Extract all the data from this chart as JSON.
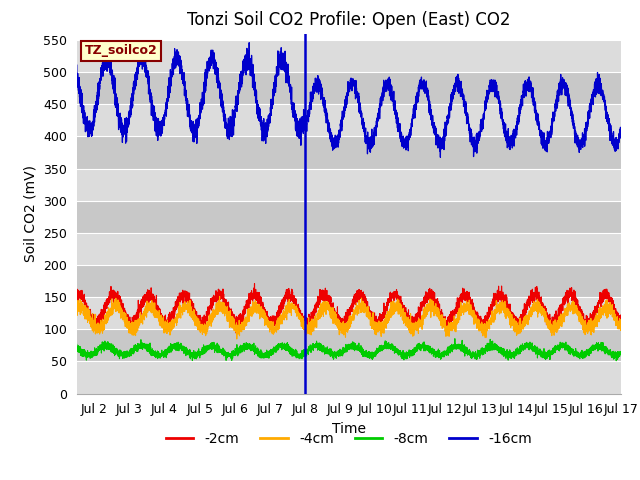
{
  "title": "Tonzi Soil CO2 Profile: Open (East) CO2",
  "xlabel": "Time",
  "ylabel": "Soil CO2 (mV)",
  "ylim": [
    0,
    560
  ],
  "yticks": [
    0,
    50,
    100,
    150,
    200,
    250,
    300,
    350,
    400,
    450,
    500,
    550
  ],
  "xlim_days": [
    1.5,
    17.0
  ],
  "xtick_days": [
    2,
    3,
    4,
    5,
    6,
    7,
    8,
    9,
    10,
    11,
    12,
    13,
    14,
    15,
    16,
    17
  ],
  "xtick_labels": [
    "Jul 2",
    "Jul 3",
    "Jul 4",
    "Jul 5",
    "Jul 6",
    "Jul 7",
    "Jul 8",
    "Jul 9",
    "Jul 10",
    "Jul 11",
    "Jul 12",
    "Jul 13",
    "Jul 14",
    "Jul 15",
    "Jul 16",
    "Jul 17"
  ],
  "vline_day": 8.0,
  "annotation_text": "TZ_soilco2",
  "annotation_color": "#880000",
  "annotation_bg": "#ffffcc",
  "bg_color_light": "#dcdcdc",
  "bg_color_dark": "#c8c8c8",
  "grid_color": "#ffffff",
  "series": {
    "red": {
      "label": "-2cm",
      "color": "#ee0000"
    },
    "orange": {
      "label": "-4cm",
      "color": "#ffaa00"
    },
    "green": {
      "label": "-8cm",
      "color": "#00cc00"
    },
    "blue": {
      "label": "-16cm",
      "color": "#0000cc"
    }
  },
  "title_fontsize": 12,
  "label_fontsize": 10,
  "tick_fontsize": 9,
  "legend_fontsize": 10,
  "figsize": [
    6.4,
    4.8
  ],
  "dpi": 100
}
